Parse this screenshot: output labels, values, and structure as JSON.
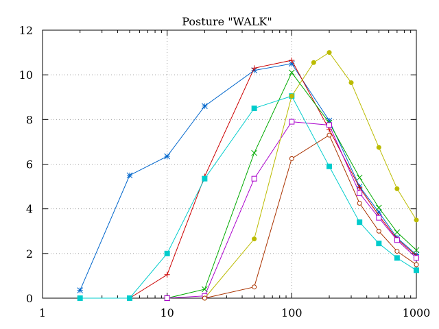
{
  "chart_data": {
    "type": "line",
    "title": "Posture \"WALK\"",
    "xlabel": "",
    "ylabel": "",
    "xscale": "log",
    "xlim": [
      1,
      1000
    ],
    "ylim": [
      0,
      12
    ],
    "xticks": [
      1,
      10,
      100,
      1000
    ],
    "xtick_labels": [
      "1",
      "10",
      "100",
      "1000"
    ],
    "yticks": [
      0,
      2,
      4,
      6,
      8,
      10,
      12
    ],
    "ytick_labels": [
      "0",
      "2",
      "4",
      "6",
      "8",
      "10",
      "12"
    ],
    "grid": true,
    "legend": "none",
    "series": [
      {
        "color": "#0066cc",
        "marker": "asterisk",
        "x": [
          2,
          5,
          10,
          20,
          50,
          100,
          200,
          350,
          500,
          700,
          1000
        ],
        "y": [
          0.35,
          5.5,
          6.35,
          8.6,
          10.2,
          10.5,
          7.95,
          5.0,
          3.85,
          2.7,
          1.95
        ]
      },
      {
        "color": "#cc0000",
        "marker": "plus",
        "x": [
          5,
          10,
          20,
          50,
          100,
          200,
          350,
          500,
          700,
          1000
        ],
        "y": [
          0.0,
          1.05,
          5.45,
          10.3,
          10.65,
          7.55,
          4.95,
          3.7,
          2.65,
          1.9
        ]
      },
      {
        "color": "#00aa00",
        "marker": "x",
        "x": [
          10,
          20,
          50,
          100,
          200,
          350,
          500,
          700,
          1000
        ],
        "y": [
          0.0,
          0.4,
          6.5,
          10.1,
          7.85,
          5.4,
          4.05,
          2.95,
          2.15
        ]
      },
      {
        "color": "#aa00cc",
        "marker": "open-square",
        "x": [
          10,
          20,
          50,
          100,
          200,
          350,
          500,
          700,
          1000
        ],
        "y": [
          0.0,
          0.1,
          5.35,
          7.9,
          7.75,
          4.7,
          3.6,
          2.6,
          1.8
        ]
      },
      {
        "color": "#00cccc",
        "marker": "filled-square",
        "x": [
          2,
          5,
          10,
          20,
          50,
          100,
          200,
          350,
          500,
          700,
          1000
        ],
        "y": [
          0.0,
          0.0,
          2.0,
          5.35,
          8.5,
          9.05,
          5.9,
          3.4,
          2.45,
          1.8,
          1.25
        ]
      },
      {
        "color": "#bbbb00",
        "marker": "filled-circle",
        "x": [
          20,
          50,
          100,
          150,
          200,
          300,
          500,
          700,
          1000
        ],
        "y": [
          0.0,
          2.65,
          9.05,
          10.55,
          11.0,
          9.65,
          6.75,
          4.9,
          3.5
        ]
      },
      {
        "color": "#aa3300",
        "marker": "open-circle",
        "x": [
          20,
          50,
          100,
          200,
          350,
          500,
          700,
          1000
        ],
        "y": [
          0.0,
          0.5,
          6.25,
          7.3,
          4.25,
          3.0,
          2.1,
          1.5
        ]
      }
    ]
  }
}
